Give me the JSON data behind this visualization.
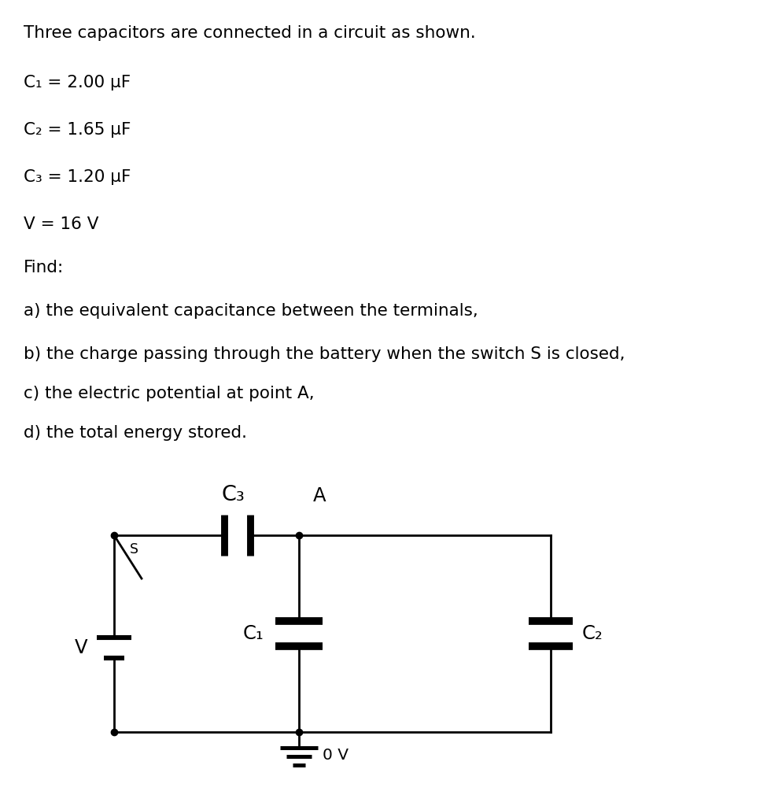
{
  "title_text": "Three capacitors are connected in a circuit as shown.",
  "lines": [
    "C₁ = 2.00 μF",
    "C₂ = 1.65 μF",
    "C₃ = 1.20 μF",
    "V = 16 V",
    "Find:",
    "a) the equivalent capacitance between the terminals,",
    "b) the charge passing through the battery when the switch S is closed,",
    "c) the electric potential at point A,",
    "d) the total energy stored."
  ],
  "bg_color": "#ffffff",
  "text_color": "#000000",
  "circuit_color": "#000000",
  "lw": 2.0,
  "font_size": 15.5,
  "title_font_size": 15.5
}
